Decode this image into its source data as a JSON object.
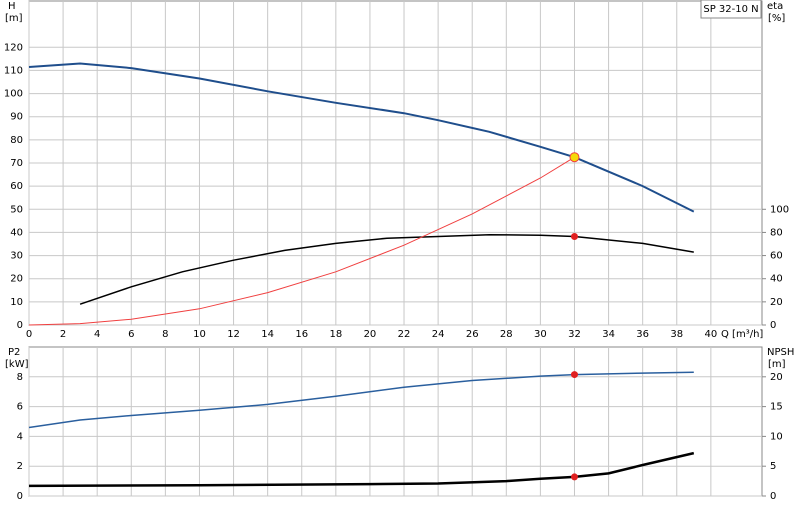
{
  "chart_data": [
    {
      "type": "line",
      "title": "SP 32-10 N",
      "ylabel": "H",
      "yunit": "[m]",
      "y2label": "eta",
      "y2unit": "[%]",
      "xlabel": "Q [m³/h]",
      "xlim": [
        0,
        43
      ],
      "xticks": [
        0,
        2,
        4,
        6,
        8,
        10,
        12,
        14,
        16,
        18,
        20,
        22,
        24,
        26,
        28,
        30,
        32,
        34,
        36,
        38,
        40
      ],
      "xtick_labels": true,
      "ylim": [
        0,
        140
      ],
      "yticks": [
        0,
        10,
        20,
        30,
        40,
        50,
        60,
        70,
        80,
        90,
        100,
        110,
        120
      ],
      "y2lim": [
        0,
        280
      ],
      "y2ticks": [
        0,
        20,
        40,
        60,
        80,
        100
      ],
      "grid": true,
      "series": [
        {
          "color": "#1f4e8c",
          "width": 2,
          "x": [
            0,
            3,
            6,
            10,
            14,
            18,
            22,
            24,
            27,
            30,
            32,
            36,
            39
          ],
          "values": [
            111.5,
            113,
            111,
            106.5,
            101,
            96,
            91.5,
            88.5,
            83.5,
            77,
            72.5,
            60,
            49
          ]
        },
        {
          "color": "#000000",
          "width": 1.5,
          "axis": "y2",
          "x": [
            3,
            6,
            9,
            12,
            15,
            18,
            21,
            24,
            27,
            30,
            32,
            36,
            39
          ],
          "values": [
            18,
            33,
            46,
            56,
            64.5,
            70.5,
            75,
            76.5,
            78,
            77.5,
            76.5,
            70.5,
            63
          ]
        },
        {
          "color": "#f04040",
          "width": 1,
          "x": [
            0,
            3,
            6,
            10,
            14,
            18,
            22,
            26,
            30,
            32
          ],
          "values": [
            0,
            0.6,
            2.5,
            7,
            14,
            23,
            34.5,
            48,
            63.5,
            72.5
          ]
        },
        {
          "color": "#f5d90a",
          "marker": "ring",
          "x": [
            32
          ],
          "values": [
            72.5
          ]
        },
        {
          "color": "#e02020",
          "marker": "dot",
          "axis": "y2",
          "x": [
            32
          ],
          "values": [
            76.5
          ]
        }
      ]
    },
    {
      "type": "line",
      "ylabel": "P2",
      "yunit": "[kW]",
      "y2label": "NPSH",
      "y2unit": "[m]",
      "xlim": [
        0,
        43
      ],
      "xticks": [
        0,
        2,
        4,
        6,
        8,
        10,
        12,
        14,
        16,
        18,
        20,
        22,
        24,
        26,
        28,
        30,
        32,
        34,
        36,
        38,
        40
      ],
      "xtick_labels": false,
      "ylim": [
        0,
        10
      ],
      "yticks": [
        0,
        2,
        4,
        6,
        8
      ],
      "y2lim": [
        0,
        25
      ],
      "y2ticks": [
        0,
        5,
        10,
        15,
        20
      ],
      "grid": true,
      "series": [
        {
          "color": "#2a5f9e",
          "width": 1.5,
          "x": [
            0,
            3,
            6,
            10,
            14,
            18,
            22,
            26,
            30,
            32,
            36,
            39
          ],
          "values": [
            4.6,
            5.1,
            5.4,
            5.75,
            6.15,
            6.7,
            7.3,
            7.75,
            8.05,
            8.15,
            8.25,
            8.3
          ]
        },
        {
          "color": "#000000",
          "width": 2.5,
          "axis": "y2",
          "x": [
            0,
            10,
            20,
            24,
            28,
            30,
            32,
            34,
            36,
            39
          ],
          "values": [
            1.7,
            1.8,
            2,
            2.1,
            2.5,
            2.9,
            3.2,
            3.8,
            5.2,
            7.2
          ]
        },
        {
          "color": "#e02020",
          "marker": "dot",
          "x": [
            32
          ],
          "values": [
            8.15
          ]
        },
        {
          "color": "#e02020",
          "marker": "dot",
          "axis": "y2",
          "x": [
            32
          ],
          "values": [
            3.2
          ]
        }
      ]
    }
  ]
}
